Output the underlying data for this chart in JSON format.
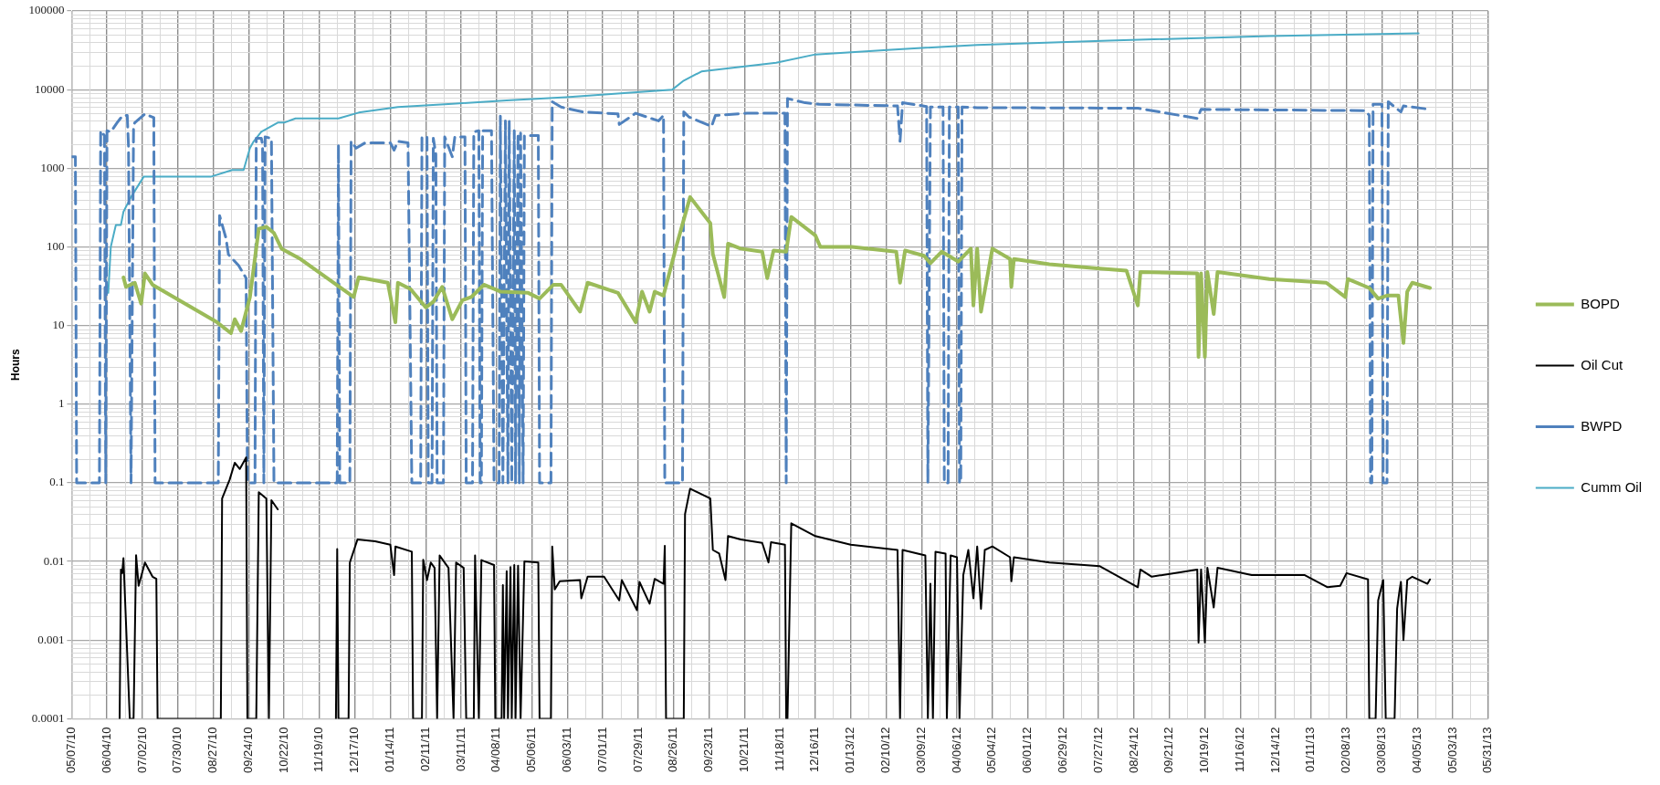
{
  "chart_data": {
    "type": "line",
    "ylabel": "Hours",
    "log": true,
    "grid": true,
    "legend": "right",
    "marker": "none",
    "xlim": [
      "2010-05-07",
      "2013-05-31"
    ],
    "xticks": [
      {
        "value": "2010-05-07",
        "label": "05/07/10"
      },
      {
        "value": "2010-06-04",
        "label": "06/04/10"
      },
      {
        "value": "2010-07-02",
        "label": "07/02/10"
      },
      {
        "value": "2010-07-30",
        "label": "07/30/10"
      },
      {
        "value": "2010-08-27",
        "label": "08/27/10"
      },
      {
        "value": "2010-09-24",
        "label": "09/24/10"
      },
      {
        "value": "2010-10-22",
        "label": "10/22/10"
      },
      {
        "value": "2010-11-19",
        "label": "11/19/10"
      },
      {
        "value": "2010-12-17",
        "label": "12/17/10"
      },
      {
        "value": "2011-01-14",
        "label": "01/14/11"
      },
      {
        "value": "2011-02-11",
        "label": "02/11/11"
      },
      {
        "value": "2011-03-11",
        "label": "03/11/11"
      },
      {
        "value": "2011-04-08",
        "label": "04/08/11"
      },
      {
        "value": "2011-05-06",
        "label": "05/06/11"
      },
      {
        "value": "2011-06-03",
        "label": "06/03/11"
      },
      {
        "value": "2011-07-01",
        "label": "07/01/11"
      },
      {
        "value": "2011-07-29",
        "label": "07/29/11"
      },
      {
        "value": "2011-08-26",
        "label": "08/26/11"
      },
      {
        "value": "2011-09-23",
        "label": "09/23/11"
      },
      {
        "value": "2011-10-21",
        "label": "10/21/11"
      },
      {
        "value": "2011-11-18",
        "label": "11/18/11"
      },
      {
        "value": "2011-12-16",
        "label": "12/16/11"
      },
      {
        "value": "2012-01-13",
        "label": "01/13/12"
      },
      {
        "value": "2012-02-10",
        "label": "02/10/12"
      },
      {
        "value": "2012-03-09",
        "label": "03/09/12"
      },
      {
        "value": "2012-04-06",
        "label": "04/06/12"
      },
      {
        "value": "2012-05-04",
        "label": "05/04/12"
      },
      {
        "value": "2012-06-01",
        "label": "06/01/12"
      },
      {
        "value": "2012-06-29",
        "label": "06/29/12"
      },
      {
        "value": "2012-07-27",
        "label": "07/27/12"
      },
      {
        "value": "2012-08-24",
        "label": "08/24/12"
      },
      {
        "value": "2012-09-21",
        "label": "09/21/12"
      },
      {
        "value": "2012-10-19",
        "label": "10/19/12"
      },
      {
        "value": "2012-11-16",
        "label": "11/16/12"
      },
      {
        "value": "2012-12-14",
        "label": "12/14/12"
      },
      {
        "value": "2013-01-11",
        "label": "01/11/13"
      },
      {
        "value": "2013-02-08",
        "label": "02/08/13"
      },
      {
        "value": "2013-03-08",
        "label": "03/08/13"
      },
      {
        "value": "2013-04-05",
        "label": "04/05/13"
      },
      {
        "value": "2013-05-03",
        "label": "05/03/13"
      },
      {
        "value": "2013-05-31",
        "label": "05/31/13"
      }
    ],
    "ylim": [
      0.0001,
      100000
    ],
    "yticks": [
      0.0001,
      0.001,
      0.01,
      0.1,
      1,
      10,
      100,
      1000,
      10000,
      100000
    ],
    "series": [
      {
        "name": "BOPD",
        "color": "#9bbb59",
        "x": [
          "2010-06-17",
          "2010-06-19",
          "2010-06-26",
          "2010-07-01",
          "2010-07-04",
          "2010-07-10",
          "2010-08-30",
          "2010-09-10",
          "2010-09-13",
          "2010-09-18",
          "2010-09-25",
          "2010-10-02",
          "2010-10-08",
          "2010-10-14",
          "2010-10-20",
          "2010-11-04",
          "2010-12-16",
          "2010-12-20",
          "2011-01-12",
          "2011-01-18",
          "2011-01-20",
          "2011-01-30",
          "2011-02-11",
          "2011-02-17",
          "2011-02-24",
          "2011-03-04",
          "2011-03-12",
          "2011-03-19",
          "2011-03-29",
          "2011-04-11",
          "2011-05-03",
          "2011-05-12",
          "2011-05-23",
          "2011-05-29",
          "2011-06-13",
          "2011-06-19",
          "2011-07-13",
          "2011-07-27",
          "2011-08-01",
          "2011-08-07",
          "2011-08-11",
          "2011-08-18",
          "2011-08-28",
          "2011-09-08",
          "2011-09-24",
          "2011-09-26",
          "2011-10-05",
          "2011-10-08",
          "2011-10-18",
          "2011-11-04",
          "2011-11-08",
          "2011-11-13",
          "2011-11-23",
          "2011-11-27",
          "2011-12-16",
          "2011-12-20",
          "2012-01-14",
          "2012-02-18",
          "2012-02-21",
          "2012-02-25",
          "2012-03-11",
          "2012-03-16",
          "2012-03-25",
          "2012-04-07",
          "2012-04-17",
          "2012-04-19",
          "2012-04-22",
          "2012-04-25",
          "2012-05-04",
          "2012-05-18",
          "2012-05-19",
          "2012-05-21",
          "2012-06-18",
          "2012-07-28",
          "2012-08-18",
          "2012-08-27",
          "2012-08-29",
          "2012-10-13",
          "2012-10-14",
          "2012-10-16",
          "2012-10-19",
          "2012-10-21",
          "2012-10-26",
          "2012-10-29",
          "2012-12-09",
          "2013-01-23",
          "2013-02-07",
          "2013-02-09",
          "2013-02-26",
          "2013-03-05",
          "2013-03-12",
          "2013-03-21",
          "2013-03-25",
          "2013-03-28",
          "2013-04-01",
          "2013-04-12",
          "2013-04-15"
        ],
        "values": [
          41,
          31,
          35,
          19,
          46,
          33,
          11,
          8,
          12,
          8.5,
          23,
          170,
          180,
          150,
          95,
          70,
          23,
          41,
          35,
          11,
          35,
          29,
          17,
          20,
          31,
          12,
          21,
          23,
          33,
          27,
          26,
          22,
          33,
          33,
          15,
          35,
          26,
          11,
          27,
          15,
          27,
          24,
          100,
          430,
          200,
          81,
          23,
          110,
          95,
          87,
          40,
          90,
          87,
          240,
          140,
          100,
          100,
          87,
          35,
          90,
          77,
          62,
          87,
          65,
          95,
          18,
          95,
          15,
          95,
          70,
          31,
          70,
          60,
          53,
          50,
          18,
          48,
          46,
          4,
          46,
          4,
          48,
          14,
          48,
          39,
          35,
          23,
          39,
          30,
          22,
          24,
          24,
          6,
          27,
          35,
          31,
          30
        ]
      },
      {
        "name": "Oil Cut",
        "color": "#000000",
        "x": [
          "2010-06-14",
          "2010-06-15",
          "2010-06-16",
          "2010-06-17",
          "2010-06-22",
          "2010-06-25",
          "2010-06-27",
          "2010-06-29",
          "2010-07-04",
          "2010-07-10",
          "2010-07-13",
          "2010-07-14",
          "2010-09-02",
          "2010-09-03",
          "2010-09-09",
          "2010-09-13",
          "2010-09-17",
          "2010-09-22",
          "2010-09-23",
          "2010-09-30",
          "2010-10-02",
          "2010-10-08",
          "2010-10-10",
          "2010-10-12",
          "2010-10-17",
          "2010-11-01",
          "2010-12-02",
          "2010-12-03",
          "2010-12-04",
          "2010-12-12",
          "2010-12-13",
          "2010-12-19",
          "2011-01-02",
          "2011-01-14",
          "2011-01-17",
          "2011-01-18",
          "2011-01-31",
          "2011-02-01",
          "2011-02-08",
          "2011-02-09",
          "2011-02-12",
          "2011-02-15",
          "2011-02-18",
          "2011-02-20",
          "2011-02-22",
          "2011-03-01",
          "2011-03-05",
          "2011-03-07",
          "2011-03-13",
          "2011-03-15",
          "2011-03-21",
          "2011-03-22",
          "2011-03-25",
          "2011-03-27",
          "2011-04-06",
          "2011-04-07",
          "2011-04-12",
          "2011-04-13",
          "2011-04-14",
          "2011-04-16",
          "2011-04-17",
          "2011-04-19",
          "2011-04-20",
          "2011-04-22",
          "2011-04-23",
          "2011-04-25",
          "2011-04-27",
          "2011-04-30",
          "2011-05-11",
          "2011-05-12",
          "2011-05-21",
          "2011-05-22",
          "2011-05-24",
          "2011-05-28",
          "2011-06-13",
          "2011-06-14",
          "2011-06-19",
          "2011-07-02",
          "2011-07-14",
          "2011-07-16",
          "2011-07-28",
          "2011-07-30",
          "2011-08-07",
          "2011-08-11",
          "2011-08-18",
          "2011-08-19",
          "2011-08-20",
          "2011-09-03",
          "2011-09-04",
          "2011-09-08",
          "2011-09-24",
          "2011-09-26",
          "2011-10-01",
          "2011-10-06",
          "2011-10-08",
          "2011-10-18",
          "2011-11-04",
          "2011-11-09",
          "2011-11-11",
          "2011-11-22",
          "2011-11-23",
          "2011-11-24",
          "2011-11-27",
          "2011-12-16",
          "2012-01-13",
          "2012-02-19",
          "2012-02-21",
          "2012-02-23",
          "2012-03-12",
          "2012-03-14",
          "2012-03-16",
          "2012-03-18",
          "2012-03-20",
          "2012-03-28",
          "2012-03-29",
          "2012-04-01",
          "2012-04-06",
          "2012-04-08",
          "2012-04-11",
          "2012-04-15",
          "2012-04-19",
          "2012-04-22",
          "2012-04-25",
          "2012-04-28",
          "2012-05-04",
          "2012-05-18",
          "2012-05-19",
          "2012-05-21",
          "2012-06-18",
          "2012-07-28",
          "2012-08-27",
          "2012-08-29",
          "2012-09-07",
          "2012-10-13",
          "2012-10-14",
          "2012-10-16",
          "2012-10-19",
          "2012-10-21",
          "2012-10-26",
          "2012-10-29",
          "2012-11-25",
          "2013-01-06",
          "2013-01-24",
          "2013-02-03",
          "2013-02-08",
          "2013-02-25",
          "2013-02-26",
          "2013-03-03",
          "2013-03-05",
          "2013-03-09",
          "2013-03-11",
          "2013-03-18",
          "2013-03-20",
          "2013-03-22",
          "2013-03-23",
          "2013-03-25",
          "2013-03-28",
          "2013-04-01",
          "2013-04-13",
          "2013-04-15"
        ],
        "values": [
          0.0001,
          0.0079,
          0.0071,
          0.011,
          0.0001,
          0.0001,
          0.012,
          0.0049,
          0.0097,
          0.0064,
          0.006,
          0.0001,
          0.0001,
          0.063,
          0.11,
          0.18,
          0.15,
          0.21,
          0.0001,
          0.0001,
          0.076,
          0.063,
          0.0001,
          0.06,
          0.046,
          null,
          0.0001,
          0.0144,
          0.0001,
          0.0001,
          0.0097,
          0.019,
          0.018,
          0.0163,
          0.0067,
          0.0155,
          0.0133,
          0.0001,
          0.0001,
          0.0105,
          0.0058,
          0.0097,
          0.0083,
          0.0001,
          0.0119,
          0.0083,
          0.0001,
          0.0097,
          0.0083,
          0.0001,
          0.0001,
          0.0119,
          0.0001,
          0.0104,
          0.009,
          0.0001,
          0.0001,
          0.005,
          0.0001,
          0.0075,
          0.0001,
          0.0085,
          0.0001,
          0.009,
          0.0001,
          0.0088,
          0.0001,
          0.01,
          0.0097,
          0.0001,
          0.0001,
          0.0155,
          0.0044,
          0.0056,
          0.0058,
          0.0034,
          0.0064,
          0.0064,
          0.0032,
          0.0058,
          0.0024,
          0.0055,
          0.0029,
          0.006,
          0.0052,
          0.0158,
          0.0001,
          0.0001,
          0.04,
          0.084,
          0.063,
          0.014,
          0.0126,
          0.0058,
          0.021,
          0.019,
          0.0172,
          0.0097,
          0.0176,
          0.0163,
          0.0001,
          0.0001,
          0.0305,
          0.021,
          0.0163,
          0.014,
          0.0001,
          0.014,
          0.0119,
          0.0001,
          0.0052,
          0.0001,
          0.0133,
          0.0126,
          0.0001,
          0.0119,
          0.0113,
          0.0001,
          0.0067,
          0.014,
          0.0034,
          0.0155,
          0.0025,
          0.014,
          0.0155,
          0.0113,
          0.0056,
          0.0113,
          0.0097,
          0.0087,
          0.0047,
          0.0079,
          0.0064,
          0.0079,
          0.00093,
          0.0079,
          0.00093,
          0.0083,
          0.0026,
          0.0083,
          0.0067,
          0.0067,
          0.0047,
          0.0049,
          0.0071,
          0.0059,
          0.0001,
          0.0001,
          0.0032,
          0.0058,
          0.0001,
          0.0001,
          0.0025,
          0.0044,
          0.0055,
          0.001,
          0.0058,
          0.0064,
          0.0052,
          0.0059
        ]
      },
      {
        "name": "BWPD",
        "color": "#4f81bd",
        "line_style": "dashed",
        "x": [
          "2010-05-07",
          "2010-05-10",
          "2010-05-11",
          "2010-05-29",
          "2010-05-30",
          "2010-06-02",
          "2010-06-03",
          "2010-06-04",
          "2010-06-07",
          "2010-06-12",
          "2010-06-16",
          "2010-06-20",
          "2010-06-21",
          "2010-06-23",
          "2010-06-25",
          "2010-06-26",
          "2010-07-04",
          "2010-07-11",
          "2010-07-12",
          "2010-08-31",
          "2010-09-01",
          "2010-09-06",
          "2010-09-08",
          "2010-09-16",
          "2010-09-22",
          "2010-09-23",
          "2010-09-29",
          "2010-09-30",
          "2010-10-04",
          "2010-10-05",
          "2010-10-06",
          "2010-10-07",
          "2010-10-12",
          "2010-10-14",
          "2010-12-03",
          "2010-12-04",
          "2010-12-05",
          "2010-12-13",
          "2010-12-14",
          "2010-12-18",
          "2010-12-25",
          "2011-01-14",
          "2011-01-17",
          "2011-01-20",
          "2011-01-28",
          "2011-01-31",
          "2011-02-07",
          "2011-02-08",
          "2011-02-12",
          "2011-02-13",
          "2011-02-16",
          "2011-02-17",
          "2011-02-19",
          "2011-02-20",
          "2011-02-25",
          "2011-02-26",
          "2011-03-04",
          "2011-03-06",
          "2011-03-14",
          "2011-03-15",
          "2011-03-20",
          "2011-03-21",
          "2011-03-25",
          "2011-03-26",
          "2011-03-27",
          "2011-03-28",
          "2011-04-04",
          "2011-04-06",
          "2011-04-10",
          "2011-04-11",
          "2011-04-13",
          "2011-04-15",
          "2011-04-17",
          "2011-04-18",
          "2011-04-20",
          "2011-04-22",
          "2011-04-23",
          "2011-04-25",
          "2011-04-26",
          "2011-04-27",
          "2011-04-29",
          "2011-04-30",
          "2011-05-11",
          "2011-05-12",
          "2011-05-21",
          "2011-05-22",
          "2011-05-29",
          "2011-06-15",
          "2011-07-13",
          "2011-07-14",
          "2011-07-27",
          "2011-08-14",
          "2011-08-18",
          "2011-08-19",
          "2011-09-02",
          "2011-09-03",
          "2011-09-07",
          "2011-09-25",
          "2011-09-28",
          "2011-10-23",
          "2011-11-22",
          "2011-11-23",
          "2011-11-24",
          "2011-12-08",
          "2011-12-19",
          "2012-02-19",
          "2012-02-21",
          "2012-02-23",
          "2012-03-13",
          "2012-03-14",
          "2012-03-16",
          "2012-03-26",
          "2012-03-27",
          "2012-03-30",
          "2012-03-31",
          "2012-04-07",
          "2012-04-08",
          "2012-04-09",
          "2012-04-10",
          "2012-04-22",
          "2012-08-27",
          "2012-10-13",
          "2012-10-16",
          "2013-02-23",
          "2013-02-26",
          "2013-02-27",
          "2013-02-28",
          "2013-03-01",
          "2013-03-08",
          "2013-03-09",
          "2013-03-12",
          "2013-03-13",
          "2013-03-23",
          "2013-03-25",
          "2013-04-15"
        ],
        "values": [
          1400,
          1400,
          0.1,
          0.1,
          3000,
          2600,
          0.1,
          3000,
          2900,
          3800,
          4600,
          4700,
          1900,
          0.1,
          3500,
          3800,
          4900,
          4400,
          0.1,
          0.1,
          250,
          130,
          80,
          58,
          40,
          0.1,
          0.1,
          2400,
          2400,
          2000,
          0.1,
          2500,
          2400,
          0.1,
          0.1,
          2000,
          0.1,
          0.1,
          2200,
          1800,
          2100,
          2100,
          1700,
          2200,
          2100,
          0.1,
          0.1,
          2500,
          2500,
          0.1,
          0.1,
          2400,
          1500,
          0.1,
          0.1,
          2500,
          1400,
          2500,
          2500,
          0.1,
          0.1,
          2900,
          3000,
          0.1,
          0.1,
          3000,
          3000,
          0.1,
          0.1,
          4600,
          0.1,
          4000,
          0.1,
          4000,
          0.1,
          3000,
          0.1,
          2800,
          0.1,
          2800,
          0.1,
          2600,
          2600,
          0.1,
          0.1,
          7000,
          6000,
          5200,
          4900,
          3600,
          5000,
          4000,
          4700,
          0.1,
          0.1,
          5200,
          4500,
          3400,
          4700,
          5000,
          5000,
          0.1,
          7700,
          6800,
          6500,
          6200,
          2200,
          6800,
          6100,
          0.1,
          6000,
          6000,
          0.1,
          0.1,
          6000,
          6000,
          0.1,
          0.1,
          6000,
          5900,
          5800,
          4300,
          5600,
          5400,
          4700,
          0.1,
          0.1,
          6500,
          6500,
          0.1,
          0.1,
          7000,
          5200,
          6200,
          5600
        ]
      },
      {
        "name": "Cumm Oil",
        "color": "#4bacc6",
        "x": [
          "2010-06-05",
          "2010-06-07",
          "2010-06-11",
          "2010-06-15",
          "2010-06-17",
          "2010-06-23",
          "2010-07-03",
          "2010-08-25",
          "2010-09-11",
          "2010-09-20",
          "2010-09-25",
          "2010-09-28",
          "2010-10-04",
          "2010-10-17",
          "2010-10-22",
          "2010-10-31",
          "2010-12-04",
          "2010-12-20",
          "2011-01-20",
          "2011-03-04",
          "2011-04-16",
          "2011-06-02",
          "2011-08-25",
          "2011-09-03",
          "2011-09-17",
          "2011-11-15",
          "2011-12-16",
          "2012-02-11",
          "2012-04-22",
          "2012-08-04",
          "2012-12-09",
          "2013-04-06"
        ],
        "values": [
          26,
          100,
          190,
          190,
          280,
          430,
          780,
          780,
          950,
          950,
          1800,
          2200,
          2900,
          3800,
          3800,
          4300,
          4300,
          5100,
          6000,
          6600,
          7300,
          8000,
          10000,
          13000,
          17000,
          22000,
          28000,
          32000,
          37000,
          42000,
          48000,
          52000
        ]
      }
    ]
  }
}
